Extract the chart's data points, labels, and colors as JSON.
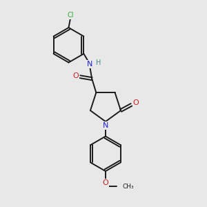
{
  "bg": "#e8e8e8",
  "bc": "#1a1a1a",
  "nc": "#2020cc",
  "oc": "#cc2020",
  "clc": "#33aa33",
  "hc": "#448888",
  "lw": 1.4,
  "fsz": 7.0,
  "figsize": [
    3.0,
    3.0
  ],
  "dpi": 100,
  "xlim": [
    0,
    10
  ],
  "ylim": [
    0,
    10
  ]
}
